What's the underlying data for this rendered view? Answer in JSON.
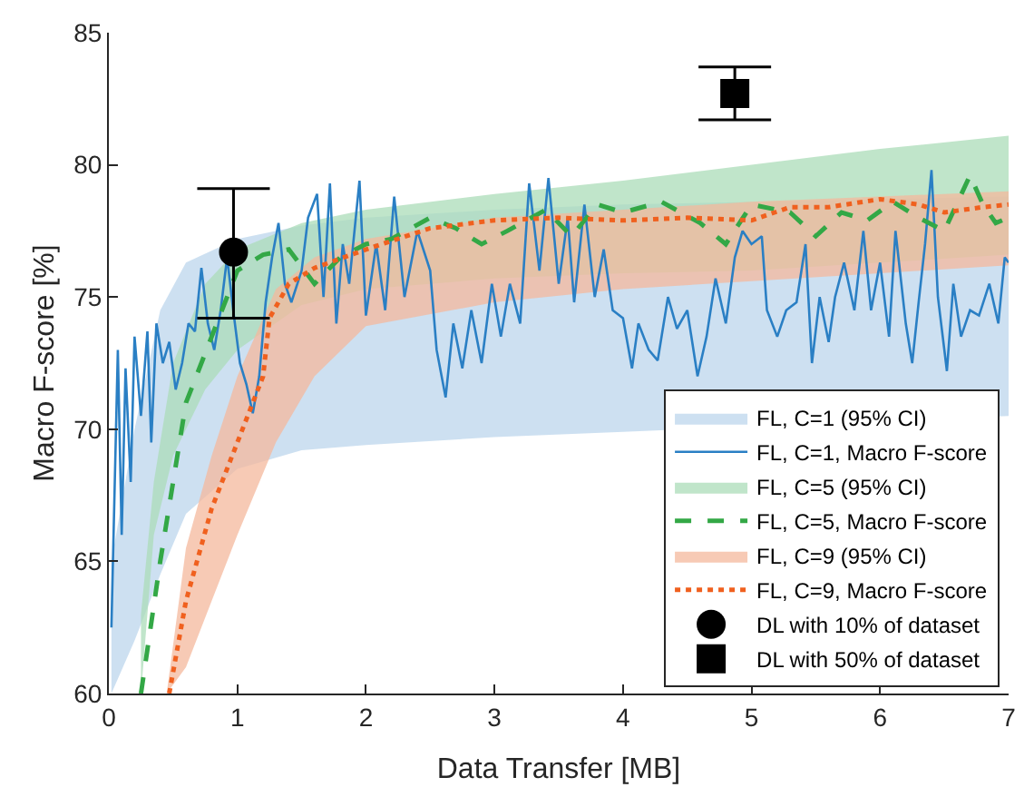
{
  "chart_data": {
    "type": "line",
    "xlabel": "Data Transfer [MB]",
    "ylabel": "Macro F-score [%]",
    "xlim": [
      0,
      7
    ],
    "xticks": [
      0,
      1,
      2,
      3,
      4,
      5,
      6,
      7
    ],
    "ylim": [
      60,
      85
    ],
    "yticks": [
      60,
      65,
      70,
      75,
      80,
      85
    ],
    "legend": "bottom right",
    "series": [
      {
        "name": "FL, C=1 (95% CI)",
        "type": "area",
        "color": "#bcd6ec",
        "x": [
          0.02,
          0.2,
          0.4,
          0.6,
          1.0,
          1.5,
          2,
          3,
          4,
          7
        ],
        "values": [
          null,
          null,
          null,
          null,
          null,
          null,
          null,
          null,
          null,
          null
        ],
        "lower": [
          60,
          62,
          64.5,
          66.8,
          68.5,
          69.2,
          69.4,
          69.7,
          69.9,
          70.5
        ],
        "upper": [
          65,
          70,
          74.5,
          76.3,
          77.2,
          77.7,
          78,
          78.3,
          78.5,
          78.8
        ]
      },
      {
        "name": "FL, C=1, Macro F-score",
        "color": "#2a7fc4",
        "marker": "none",
        "line_style": "solid",
        "x": [
          0.02,
          0.07,
          0.1,
          0.13,
          0.17,
          0.2,
          0.25,
          0.3,
          0.33,
          0.37,
          0.42,
          0.47,
          0.52,
          0.57,
          0.62,
          0.67,
          0.72,
          0.77,
          0.82,
          0.87,
          0.92,
          0.97,
          1.02,
          1.07,
          1.12,
          1.17,
          1.22,
          1.27,
          1.32,
          1.37,
          1.42,
          1.5,
          1.55,
          1.62,
          1.67,
          1.72,
          1.77,
          1.82,
          1.87,
          1.95,
          2.0,
          2.08,
          2.15,
          2.22,
          2.3,
          2.4,
          2.5,
          2.55,
          2.62,
          2.68,
          2.75,
          2.82,
          2.9,
          2.98,
          3.05,
          3.12,
          3.2,
          3.27,
          3.35,
          3.42,
          3.5,
          3.57,
          3.62,
          3.7,
          3.78,
          3.85,
          3.92,
          4.0,
          4.07,
          4.12,
          4.2,
          4.27,
          4.35,
          4.42,
          4.5,
          4.58,
          4.65,
          4.72,
          4.8,
          4.87,
          4.93,
          5.0,
          5.08,
          5.12,
          5.2,
          5.27,
          5.35,
          5.42,
          5.47,
          5.53,
          5.6,
          5.65,
          5.72,
          5.8,
          5.87,
          5.93,
          6.0,
          6.07,
          6.12,
          6.2,
          6.25,
          6.3,
          6.35,
          6.4,
          6.45,
          6.52,
          6.57,
          6.63,
          6.7,
          6.77,
          6.85,
          6.92,
          6.97,
          7.0
        ],
        "values": [
          62.5,
          73,
          66,
          72.3,
          68,
          73.5,
          70.5,
          73.7,
          69.5,
          74,
          72.5,
          73.3,
          71.5,
          72.5,
          74,
          73.7,
          76.1,
          74,
          73,
          74.5,
          76.5,
          74.4,
          72.5,
          71.7,
          70.6,
          72,
          74.8,
          76.5,
          77.8,
          75.5,
          74.8,
          76,
          78,
          78.9,
          75,
          79.3,
          74,
          77,
          75.5,
          79.4,
          74.3,
          77,
          74.5,
          78.8,
          75,
          77.5,
          76,
          73,
          71.2,
          74,
          72.3,
          74.5,
          72.5,
          75.5,
          73.5,
          75.5,
          74,
          79.3,
          76,
          79.5,
          75.5,
          78,
          74.8,
          78.5,
          75,
          76.8,
          74.5,
          74.2,
          72.3,
          74,
          73,
          72.6,
          75,
          73.8,
          74.5,
          72,
          73.5,
          75.7,
          74,
          76.5,
          77.5,
          77,
          77.3,
          74.5,
          73.5,
          74.5,
          74.8,
          77,
          72.5,
          75,
          73.3,
          75,
          76.3,
          74.5,
          77.5,
          74.5,
          76.3,
          73.5,
          77.5,
          74,
          72.5,
          74.8,
          77,
          79.8,
          75,
          72.2,
          75.5,
          73.5,
          74.5,
          74.3,
          75.5,
          74,
          76.5,
          76.3
        ]
      },
      {
        "name": "FL, C=5 (95% CI)",
        "type": "area",
        "color": "#abdcb8",
        "x": [
          0.25,
          0.35,
          0.5,
          0.75,
          1,
          1.5,
          2,
          3,
          4,
          5,
          6,
          7
        ],
        "values": [
          null,
          null,
          null,
          null,
          null,
          null,
          null,
          null,
          null,
          null,
          null,
          null
        ],
        "lower": [
          60,
          66,
          69,
          71.5,
          73,
          74.7,
          75.3,
          75.7,
          75.9,
          76,
          76.3,
          76.6
        ],
        "upper": [
          63,
          68,
          72.5,
          75.5,
          76.8,
          77.8,
          78.3,
          78.9,
          79.4,
          80,
          80.6,
          81.1
        ]
      },
      {
        "name": "FL, C=5, Macro F-score",
        "color": "#33a846",
        "marker": "none",
        "line_style": "dashed",
        "x": [
          0.25,
          0.4,
          0.5,
          0.6,
          0.8,
          1.0,
          1.2,
          1.4,
          1.6,
          1.8,
          2,
          2.2,
          2.5,
          2.7,
          2.9,
          3.1,
          3.4,
          3.6,
          3.8,
          4.0,
          4.3,
          4.6,
          4.8,
          5.0,
          5.3,
          5.5,
          5.7,
          5.9,
          6.1,
          6.3,
          6.5,
          6.7,
          6.8,
          6.9,
          7.0
        ],
        "values": [
          60,
          65,
          68,
          71,
          73.5,
          76,
          76.6,
          76.8,
          75.5,
          76.5,
          77,
          77.2,
          78,
          77.6,
          77,
          77.5,
          78.3,
          77.3,
          78.5,
          78.2,
          78.6,
          77.8,
          77,
          78.5,
          78.2,
          77.3,
          78.2,
          77.9,
          78.6,
          78,
          77.5,
          79.6,
          78.5,
          77.8,
          78
        ]
      },
      {
        "name": "FL, C=9 (95% CI)",
        "type": "area",
        "color": "#f4b89c",
        "x": [
          0.45,
          0.6,
          0.8,
          1,
          1.3,
          1.6,
          2,
          3,
          4,
          5,
          6,
          7
        ],
        "values": [
          null,
          null,
          null,
          null,
          null,
          null,
          null,
          null,
          null,
          null,
          null,
          null
        ],
        "lower": [
          60,
          61,
          63.5,
          66,
          69.5,
          72,
          73.9,
          74.8,
          75.3,
          75.6,
          75.9,
          76.2
        ],
        "upper": [
          60,
          65.5,
          69,
          72,
          75.3,
          76.5,
          77.2,
          78,
          78.3,
          78.6,
          78.8,
          79
        ]
      },
      {
        "name": "FL, C=9, Macro F-score",
        "color": "#f0601e",
        "marker": "none",
        "line_style": "dotted",
        "x": [
          0.47,
          0.6,
          0.8,
          1.0,
          1.2,
          1.25,
          1.4,
          1.6,
          2,
          2.5,
          3,
          3.5,
          4,
          4.5,
          5,
          5.3,
          5.6,
          6,
          6.3,
          6.5,
          6.8,
          7
        ],
        "values": [
          60,
          63.5,
          67,
          69.5,
          72,
          74.2,
          75.5,
          76.1,
          76.8,
          77.6,
          77.9,
          78,
          77.9,
          78,
          77.9,
          78.4,
          78.4,
          78.7,
          78.5,
          78.2,
          78.4,
          78.5
        ]
      },
      {
        "name": "DL with 10% of dataset",
        "type": "scatter",
        "color": "#000000",
        "marker": "circle",
        "x": [
          0.97
        ],
        "values": [
          76.7
        ],
        "errors": [
          [
            74.2,
            79.1
          ]
        ]
      },
      {
        "name": "DL with 50% of dataset",
        "type": "scatter",
        "color": "#000000",
        "marker": "square",
        "x": [
          4.87
        ],
        "values": [
          82.7
        ],
        "errors": [
          [
            81.7,
            83.7
          ]
        ]
      }
    ]
  }
}
